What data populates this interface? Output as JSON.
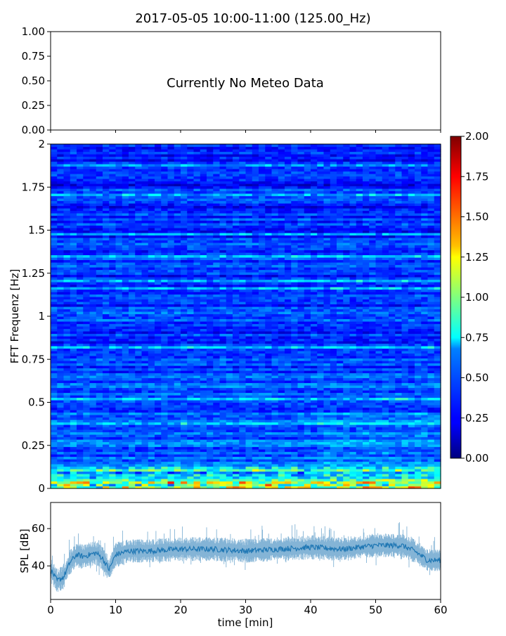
{
  "title": "2017-05-05 10:00-11:00 (125.00_Hz)",
  "chart_data": [
    {
      "type": "line",
      "panel": "meteo",
      "annotation": "Currently No Meteo Data",
      "ylim": [
        0,
        1
      ],
      "y_ticks": [
        "0.00",
        "0.25",
        "0.50",
        "0.75",
        "1.00"
      ],
      "xlim": [
        0,
        60
      ],
      "series": []
    },
    {
      "type": "heatmap",
      "panel": "spectrogram",
      "ylabel": "FFT Frequenz [Hz]",
      "xlim": [
        0,
        60
      ],
      "ylim": [
        0,
        2
      ],
      "y_ticks": [
        "0",
        "0.25",
        "0.5",
        "0.75",
        "1",
        "1.25",
        "1.5",
        "1.75",
        "2"
      ],
      "colormap": "jet",
      "colorbar": {
        "range": [
          0,
          2
        ],
        "ticks": [
          "0.00",
          "0.25",
          "0.50",
          "0.75",
          "1.00",
          "1.25",
          "1.50",
          "1.75",
          "2.00"
        ]
      }
    },
    {
      "type": "line",
      "panel": "spl",
      "xlabel": "time [min]",
      "ylabel": "SPL [dB]",
      "xlim": [
        0,
        60
      ],
      "ylim": [
        22,
        74
      ],
      "x_ticks": [
        "0",
        "10",
        "20",
        "30",
        "40",
        "50",
        "60"
      ],
      "y_ticks": [
        "40",
        "60"
      ],
      "color": "#1f77b4",
      "x": [
        0,
        1,
        2,
        3,
        4,
        5,
        6,
        7,
        8,
        9,
        10,
        12,
        15,
        20,
        25,
        30,
        35,
        40,
        45,
        50,
        54,
        56,
        58,
        60
      ],
      "y": [
        38,
        32,
        34,
        42,
        46,
        45,
        46,
        47,
        44,
        38,
        46,
        48,
        48,
        49,
        49,
        48,
        49,
        50,
        49,
        51,
        51,
        48,
        43,
        43
      ]
    }
  ]
}
